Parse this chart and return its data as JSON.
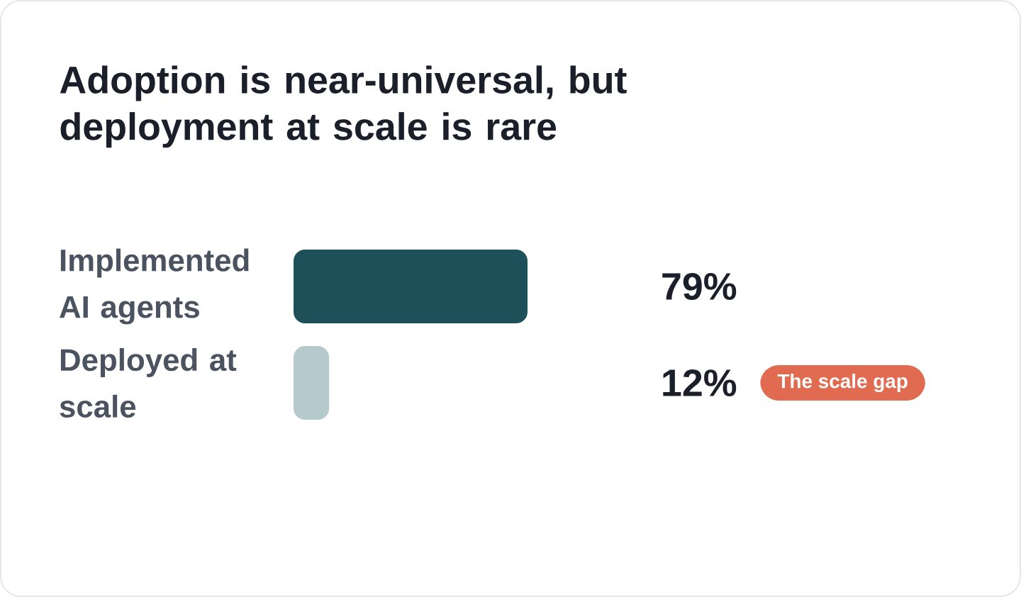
{
  "chart_data": {
    "type": "bar",
    "orientation": "horizontal",
    "title": "Adoption is near-universal, but deployment at scale is rare",
    "categories": [
      "Implemented AI agents",
      "Deployed at scale"
    ],
    "values": [
      79,
      12
    ],
    "colors": [
      "#1e505a",
      "#b6c9cc"
    ],
    "xlim": [
      0,
      79
    ],
    "tick_labels": "y",
    "value_labels": [
      "79%",
      "12%"
    ],
    "annotations": [
      "The scale gap"
    ]
  }
}
